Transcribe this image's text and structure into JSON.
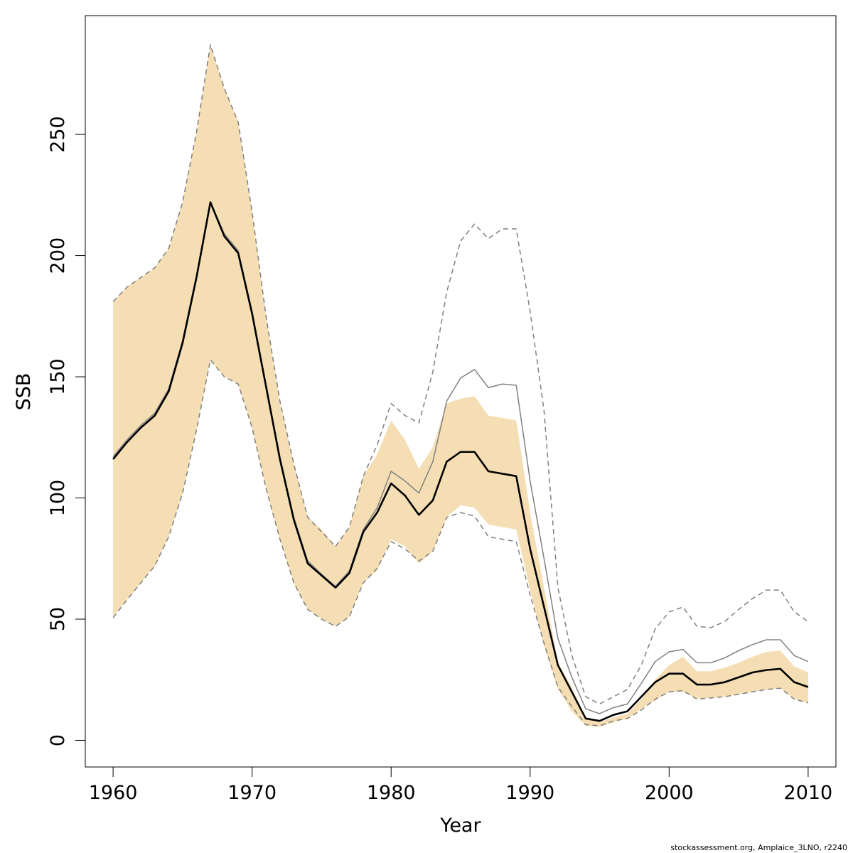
{
  "chart_data": {
    "type": "line",
    "xlabel": "Year",
    "ylabel": "SSB",
    "xlim": [
      1958,
      2012
    ],
    "ylim": [
      -11,
      299
    ],
    "xticks": [
      1960,
      1970,
      1980,
      1990,
      2000,
      2010
    ],
    "yticks": [
      0,
      50,
      100,
      150,
      200,
      250
    ],
    "years": [
      1960,
      1961,
      1962,
      1963,
      1964,
      1965,
      1966,
      1967,
      1968,
      1969,
      1970,
      1971,
      1972,
      1973,
      1974,
      1975,
      1976,
      1977,
      1978,
      1979,
      1980,
      1981,
      1982,
      1983,
      1984,
      1985,
      1986,
      1987,
      1988,
      1989,
      1990,
      1991,
      1992,
      1993,
      1994,
      1995,
      1996,
      1997,
      1998,
      1999,
      2000,
      2001,
      2002,
      2003,
      2004,
      2005,
      2006,
      2007,
      2008,
      2009,
      2010
    ],
    "band": {
      "lower": [
        51,
        58,
        65,
        72,
        84,
        102,
        128,
        157,
        150,
        147,
        129,
        104,
        83,
        65,
        54,
        50,
        47,
        51,
        65,
        70,
        83,
        80,
        73,
        78,
        92,
        97,
        96,
        89,
        88,
        87,
        62,
        39,
        21,
        12,
        6,
        5.5,
        7.5,
        9,
        13,
        16.5,
        20,
        20,
        17.3,
        17.5,
        18,
        19,
        20,
        21,
        21.5,
        17,
        15.5
      ],
      "upper": [
        181,
        187,
        191,
        195,
        203,
        222,
        251,
        287,
        269,
        255,
        218,
        175,
        140,
        114,
        92,
        87,
        80,
        88,
        109,
        118,
        132,
        124,
        112,
        121,
        139,
        141,
        142,
        134,
        133,
        132,
        94,
        63,
        32,
        22,
        9,
        7.5,
        9.5,
        11,
        17,
        25,
        31,
        34.5,
        28.5,
        28.5,
        30,
        32,
        34.5,
        36.5,
        37,
        30.5,
        28
      ]
    },
    "series": [
      {
        "color": "#000000",
        "values": [
          116,
          123,
          129,
          134,
          144,
          164,
          191,
          222,
          208,
          201,
          176,
          146,
          116,
          91,
          73,
          68,
          63,
          69,
          86,
          94,
          106,
          101,
          93,
          99,
          115,
          119,
          119,
          111,
          110,
          109,
          79,
          55,
          31,
          20,
          9,
          8,
          10.5,
          12,
          18,
          24,
          27.5,
          27.5,
          23,
          23,
          24,
          26,
          28,
          29,
          29.5,
          24,
          22
        ]
      },
      {
        "color": "#808080",
        "values": [
          117,
          124,
          130,
          135,
          145,
          165,
          192,
          222,
          209,
          202,
          177,
          147,
          117,
          92,
          74,
          68.5,
          63.5,
          70,
          87,
          96,
          111,
          107,
          102,
          115,
          140,
          149.5,
          153,
          145.5,
          147,
          146.5,
          107,
          75,
          42,
          26,
          13,
          11,
          13.5,
          15,
          23.5,
          32.5,
          36.5,
          37.5,
          32,
          32,
          34,
          37,
          39.5,
          41.5,
          41.5,
          35,
          32.5
        ]
      },
      {
        "color": "#808080",
        "dashed": true,
        "values": [
          50.5,
          58,
          65,
          72,
          84,
          102,
          128,
          157,
          150,
          147,
          129,
          104,
          83,
          65,
          54,
          50,
          47,
          51,
          65,
          71,
          82,
          79,
          74,
          78,
          92,
          94,
          92.5,
          84,
          83,
          82,
          60,
          40,
          22,
          14,
          6.5,
          6,
          8,
          9,
          12.5,
          17,
          20,
          20.5,
          17,
          17.5,
          18,
          19,
          20,
          21,
          21.5,
          17,
          15.5
        ]
      },
      {
        "color": "#808080",
        "dashed": true,
        "values": [
          181,
          187,
          191,
          195,
          203,
          222,
          251,
          287,
          269,
          255,
          218,
          175,
          140,
          114,
          92,
          86,
          80,
          88,
          109,
          122,
          139,
          134,
          131,
          152,
          185,
          206,
          213,
          207,
          211,
          211,
          177,
          136,
          63,
          35,
          18,
          15,
          18,
          21,
          31,
          46,
          53,
          55,
          47,
          46.5,
          49,
          54,
          58.5,
          62,
          62,
          53,
          49
        ]
      }
    ],
    "band_color": "#F5DEB3",
    "footer": "stockassessment.org, Amplaice_3LNO, r2240"
  }
}
